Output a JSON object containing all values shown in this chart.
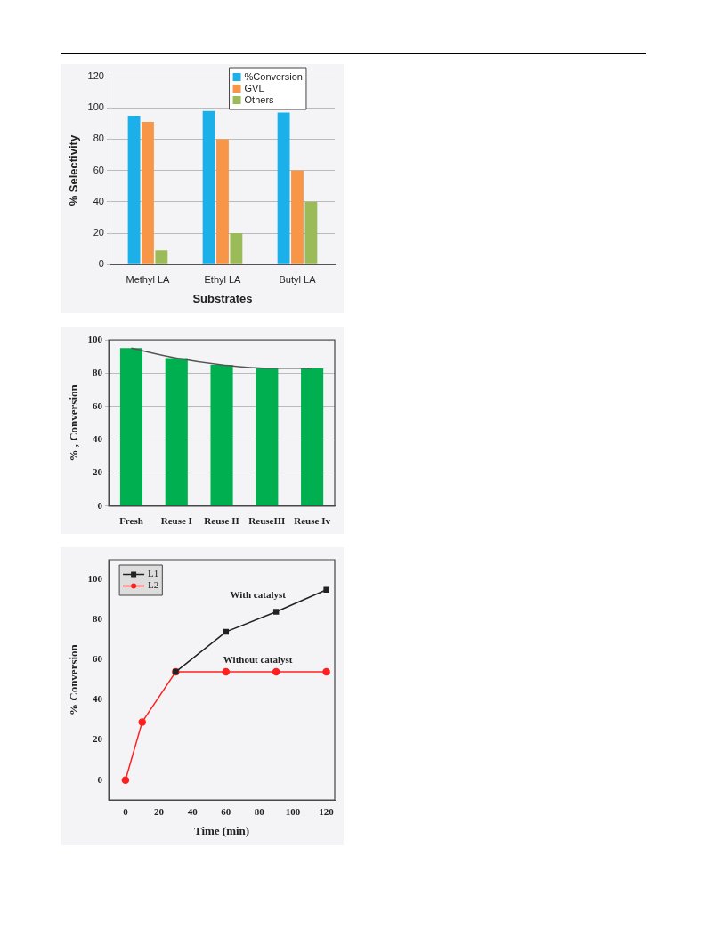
{
  "chart_data": [
    {
      "type": "bar",
      "xlabel": "Substrates",
      "ylabel": "% Selectivity",
      "categories": [
        "Methyl LA",
        "Ethyl LA",
        "Butyl LA"
      ],
      "series": [
        {
          "name": "%Conversion",
          "color": "#1cb0ea",
          "values": [
            95,
            98,
            97
          ]
        },
        {
          "name": "GVL",
          "color": "#f79646",
          "values": [
            91,
            80,
            60
          ]
        },
        {
          "name": "Others",
          "color": "#9bbb59",
          "values": [
            9,
            20,
            40
          ]
        }
      ],
      "ylim": [
        0,
        120
      ],
      "yticks": [
        0,
        20,
        40,
        60,
        80,
        100,
        120
      ],
      "grid": "y",
      "legend": "top right"
    },
    {
      "type": "bar",
      "ylabel": "% , Conversion",
      "categories": [
        "Fresh",
        "Reuse I",
        "Reuse II",
        "ReuseIII",
        "Reuse Iv"
      ],
      "series": [
        {
          "color": "#00b050",
          "values": [
            95,
            89,
            85,
            83,
            83
          ]
        },
        {
          "type": "line",
          "color": "#555555",
          "values": [
            95,
            89,
            85,
            83,
            83
          ],
          "marker": "none"
        }
      ],
      "ylim": [
        0,
        100
      ],
      "yticks": [
        0,
        20,
        40,
        60,
        80,
        100
      ],
      "grid": "y"
    },
    {
      "type": "line",
      "xlabel": "Time (min)",
      "ylabel": "% Conversion",
      "series": [
        {
          "name": "L1",
          "color": "#222222",
          "x": [
            30,
            60,
            90,
            120
          ],
          "values": [
            54,
            74,
            84,
            95
          ],
          "marker": "square"
        },
        {
          "name": "L2",
          "color": "#ff2020",
          "x": [
            0,
            10,
            30,
            60,
            90,
            120
          ],
          "values": [
            0,
            29,
            54,
            54,
            54,
            54
          ],
          "marker": "circle"
        }
      ],
      "xlim": [
        -10,
        125
      ],
      "xticks": [
        0,
        20,
        40,
        60,
        80,
        100,
        120
      ],
      "ylim": [
        -10,
        110
      ],
      "yticks": [
        0,
        20,
        40,
        60,
        80,
        100
      ],
      "legend": "top left",
      "annotations": [
        "With catalyst",
        "Without catalyst"
      ]
    }
  ]
}
